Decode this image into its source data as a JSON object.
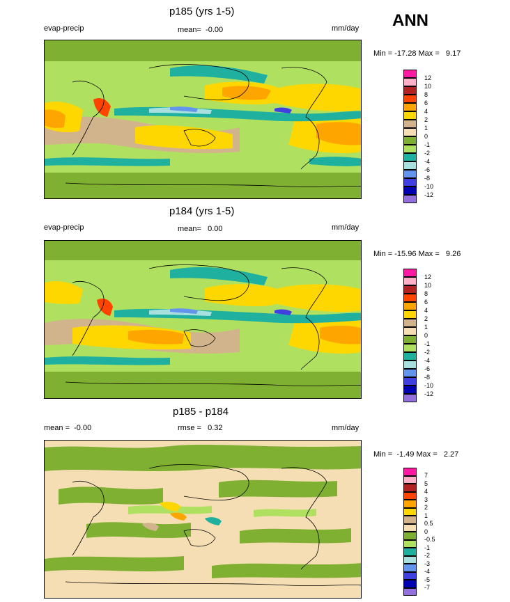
{
  "season": "ANN",
  "panels": [
    {
      "title": "p185 (yrs 1-5)",
      "left_label": "evap-precip",
      "center_label": "mean=  -0.00",
      "right_label": "mm/day",
      "minmax": "Min = -17.28 Max =   9.17",
      "levels": [
        "12",
        "10",
        "8",
        "6",
        "4",
        "2",
        "1",
        "0",
        "-1",
        "-2",
        "-4",
        "-6",
        "-8",
        "-10",
        "-12"
      ],
      "colors": [
        "#ff1aa3",
        "#ffb0c8",
        "#b22222",
        "#ff4500",
        "#ffa500",
        "#ffd700",
        "#d2b48c",
        "#f5deb3",
        "#80b032",
        "#b0e060",
        "#20b0a0",
        "#a8e0e0",
        "#6495ed",
        "#4040e0",
        "#0000b0",
        "#9370db"
      ]
    },
    {
      "title": "p184 (yrs 1-5)",
      "left_label": "evap-precip",
      "center_label": "mean=   0.00",
      "right_label": "mm/day",
      "minmax": "Min = -15.96 Max =   9.26",
      "levels": [
        "12",
        "10",
        "8",
        "6",
        "4",
        "2",
        "1",
        "0",
        "-1",
        "-2",
        "-4",
        "-6",
        "-8",
        "-10",
        "-12"
      ],
      "colors": [
        "#ff1aa3",
        "#ffb0c8",
        "#b22222",
        "#ff4500",
        "#ffa500",
        "#ffd700",
        "#d2b48c",
        "#f5deb3",
        "#80b032",
        "#b0e060",
        "#20b0a0",
        "#a8e0e0",
        "#6495ed",
        "#4040e0",
        "#0000b0",
        "#9370db"
      ]
    },
    {
      "title": "p185 - p184",
      "left_label": "mean =  -0.00",
      "center_label": "rmse =   0.32",
      "right_label": "mm/day",
      "minmax": "Min =  -1.49 Max =   2.27",
      "levels": [
        "7",
        "5",
        "4",
        "3",
        "2",
        "1",
        "0.5",
        "0",
        "-0.5",
        "-1",
        "-2",
        "-3",
        "-4",
        "-5",
        "-7"
      ],
      "colors": [
        "#ff1aa3",
        "#ffb0c8",
        "#b22222",
        "#ff4500",
        "#ffa500",
        "#ffd700",
        "#d2b48c",
        "#f5deb3",
        "#80b032",
        "#b0e060",
        "#20b0a0",
        "#a8e0e0",
        "#6495ed",
        "#4040e0",
        "#0000b0",
        "#9370db"
      ]
    }
  ]
}
